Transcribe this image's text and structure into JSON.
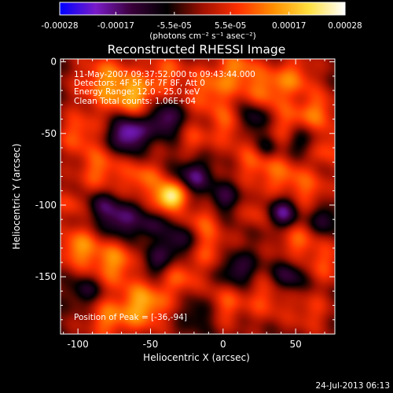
{
  "chart_data": {
    "type": "heatmap",
    "title": "Reconstructed RHESSI Image",
    "xlabel": "Heliocentric X (arcsec)",
    "ylabel": "Heliocentric Y (arcsec)",
    "xlim": [
      -112,
      77
    ],
    "ylim": [
      -190,
      2
    ],
    "x_ticks": [
      -100,
      -50,
      0,
      50
    ],
    "y_ticks": [
      0,
      -50,
      -100,
      -150
    ],
    "colorbar": {
      "label": "(photons cm⁻² s⁻¹ asec⁻²)",
      "range": [
        -0.00028,
        0.00028
      ],
      "tick_labels": [
        "-0.00028",
        "-0.00017",
        "-5.5e-05",
        "5.5e-05",
        "0.00017",
        "0.00028"
      ],
      "tick_values": [
        -0.00028,
        -0.00017,
        -5.5e-05,
        5.5e-05,
        0.00017,
        0.00028
      ],
      "colormap": [
        "#0000ff",
        "#7a1cc8",
        "#3a003a",
        "#000000",
        "#a01000",
        "#ff3000",
        "#ff9000",
        "#ffe040",
        "#ffffff"
      ]
    },
    "annotations": [
      "11-May-2007 09:37:52.000 to 09:43:44.000",
      "Detectors: 4F 5F 6F 7F 8F, Att 0",
      "Energy Range: 12.0 - 25.0 keV",
      "Clean    Total counts: 1.06E+04",
      "Position of Peak = [-36,-94]"
    ],
    "peak": {
      "x": -36,
      "y": -94,
      "label": "Position of Peak = [-36,-94]"
    },
    "footer_timestamp": "24-Jul-2013 06:13"
  }
}
